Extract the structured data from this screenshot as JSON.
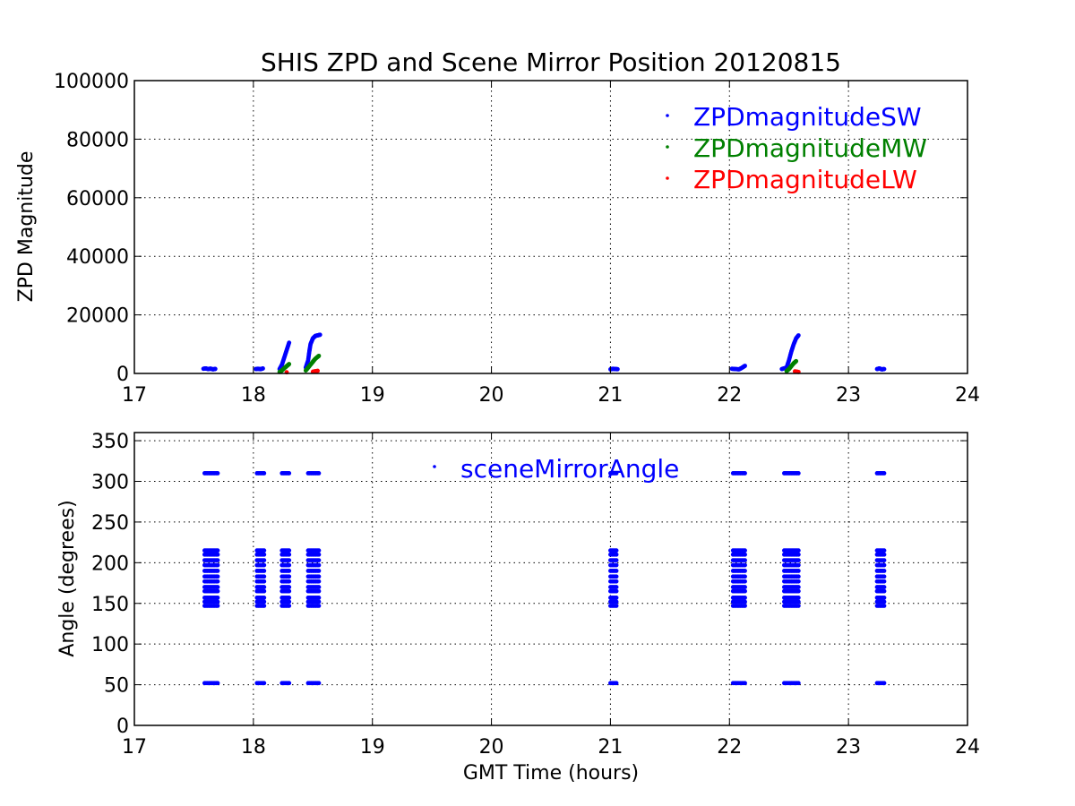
{
  "figure": {
    "title": "SHIS ZPD and Scene Mirror Position 20120815"
  },
  "colors": {
    "sw": "#0000ff",
    "mw": "#008000",
    "lw": "#ff0000",
    "axes": "#000000",
    "grid": "#000000",
    "background": "#ffffff"
  },
  "chart_data": [
    {
      "type": "scatter",
      "title": "SHIS ZPD and Scene Mirror Position 20120815",
      "xlabel": "",
      "ylabel": "ZPD Magnitude",
      "xlim": [
        17,
        24
      ],
      "ylim": [
        0,
        100000
      ],
      "xticks": [
        17,
        18,
        19,
        20,
        21,
        22,
        23,
        24
      ],
      "yticks": [
        0,
        20000,
        40000,
        60000,
        80000,
        100000
      ],
      "grid": true,
      "legend_position": "top-right",
      "series": [
        {
          "name": "ZPDmagnitudeSW",
          "color": "#0000ff",
          "points": [
            [
              17.58,
              1600
            ],
            [
              17.6,
              1700
            ],
            [
              17.62,
              1500
            ],
            [
              17.64,
              1650
            ],
            [
              17.66,
              1400
            ],
            [
              17.68,
              1550
            ],
            [
              18.02,
              1500
            ],
            [
              18.04,
              1600
            ],
            [
              18.06,
              1450
            ],
            [
              18.08,
              1700
            ],
            [
              18.22,
              1500
            ],
            [
              18.24,
              3000
            ],
            [
              18.26,
              5500
            ],
            [
              18.28,
              8000
            ],
            [
              18.3,
              10500
            ],
            [
              18.44,
              2000
            ],
            [
              18.46,
              4500
            ],
            [
              18.47,
              7500
            ],
            [
              18.48,
              10000
            ],
            [
              18.5,
              12000
            ],
            [
              18.52,
              12800
            ],
            [
              18.54,
              13000
            ],
            [
              18.56,
              13200
            ],
            [
              21.0,
              1400
            ],
            [
              21.02,
              1600
            ],
            [
              21.04,
              1500
            ],
            [
              21.06,
              1450
            ],
            [
              22.02,
              1600
            ],
            [
              22.05,
              1500
            ],
            [
              22.08,
              1400
            ],
            [
              22.1,
              1800
            ],
            [
              22.13,
              2600
            ],
            [
              22.44,
              1500
            ],
            [
              22.48,
              2000
            ],
            [
              22.5,
              4500
            ],
            [
              22.52,
              7500
            ],
            [
              22.54,
              10000
            ],
            [
              22.56,
              12000
            ],
            [
              22.58,
              13000
            ],
            [
              23.24,
              1500
            ],
            [
              23.26,
              1700
            ],
            [
              23.28,
              1400
            ],
            [
              23.3,
              1500
            ]
          ]
        },
        {
          "name": "ZPDmagnitudeMW",
          "color": "#008000",
          "points": [
            [
              18.22,
              500
            ],
            [
              18.24,
              1000
            ],
            [
              18.26,
              1800
            ],
            [
              18.28,
              2500
            ],
            [
              18.3,
              3200
            ],
            [
              18.44,
              1000
            ],
            [
              18.46,
              2000
            ],
            [
              18.48,
              3000
            ],
            [
              18.5,
              4000
            ],
            [
              18.52,
              5000
            ],
            [
              18.55,
              6000
            ],
            [
              22.48,
              800
            ],
            [
              22.5,
              1500
            ],
            [
              22.52,
              2500
            ],
            [
              22.54,
              3500
            ],
            [
              22.56,
              4200
            ]
          ]
        },
        {
          "name": "ZPDmagnitudeLW",
          "color": "#ff0000",
          "points": [
            [
              18.28,
              400
            ],
            [
              18.5,
              600
            ],
            [
              18.54,
              900
            ],
            [
              22.55,
              700
            ],
            [
              22.58,
              500
            ]
          ]
        }
      ]
    },
    {
      "type": "scatter",
      "title": "",
      "xlabel": "GMT Time (hours)",
      "ylabel": "Angle (degrees)",
      "xlim": [
        17,
        24
      ],
      "ylim": [
        0,
        360
      ],
      "xticks": [
        17,
        18,
        19,
        20,
        21,
        22,
        23,
        24
      ],
      "yticks": [
        0,
        50,
        100,
        150,
        200,
        250,
        300,
        350
      ],
      "grid": true,
      "legend_position": "top-center",
      "scan_angles": [
        52,
        147,
        152,
        157,
        165,
        170,
        177,
        183,
        190,
        197,
        203,
        210,
        215,
        310
      ],
      "series": [
        {
          "name": "sceneMirrorAngle",
          "color": "#0000ff",
          "segments": [
            [
              17.59,
              17.7
            ],
            [
              18.03,
              18.09
            ],
            [
              18.24,
              18.3
            ],
            [
              18.46,
              18.55
            ],
            [
              21.0,
              21.05
            ],
            [
              22.03,
              22.13
            ],
            [
              22.46,
              22.58
            ],
            [
              23.24,
              23.3
            ]
          ]
        }
      ]
    }
  ]
}
